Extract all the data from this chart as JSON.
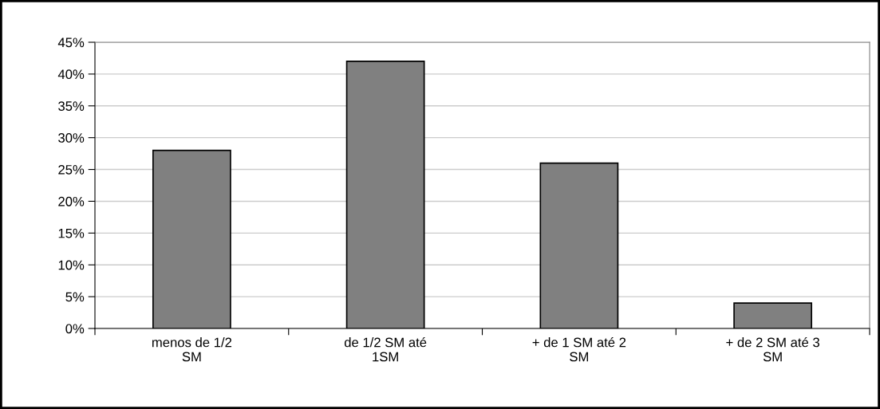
{
  "chart_data": {
    "type": "bar",
    "categories": [
      "menos de 1/2\nSM",
      "de 1/2 SM até\n1SM",
      "+ de 1 SM até 2\nSM",
      "+ de 2 SM até 3\nSM"
    ],
    "values": [
      28,
      42,
      26,
      4
    ],
    "color": "#808080",
    "ylim": [
      0,
      45
    ],
    "yticks": [
      {
        "value": 0,
        "label": "0%"
      },
      {
        "value": 5,
        "label": "5%"
      },
      {
        "value": 10,
        "label": "10%"
      },
      {
        "value": 15,
        "label": "15%"
      },
      {
        "value": 20,
        "label": "20%"
      },
      {
        "value": 25,
        "label": "25%"
      },
      {
        "value": 30,
        "label": "30%"
      },
      {
        "value": 35,
        "label": "35%"
      },
      {
        "value": 40,
        "label": "40%"
      },
      {
        "value": 45,
        "label": "45%"
      }
    ],
    "grid": "y",
    "legend": false
  }
}
